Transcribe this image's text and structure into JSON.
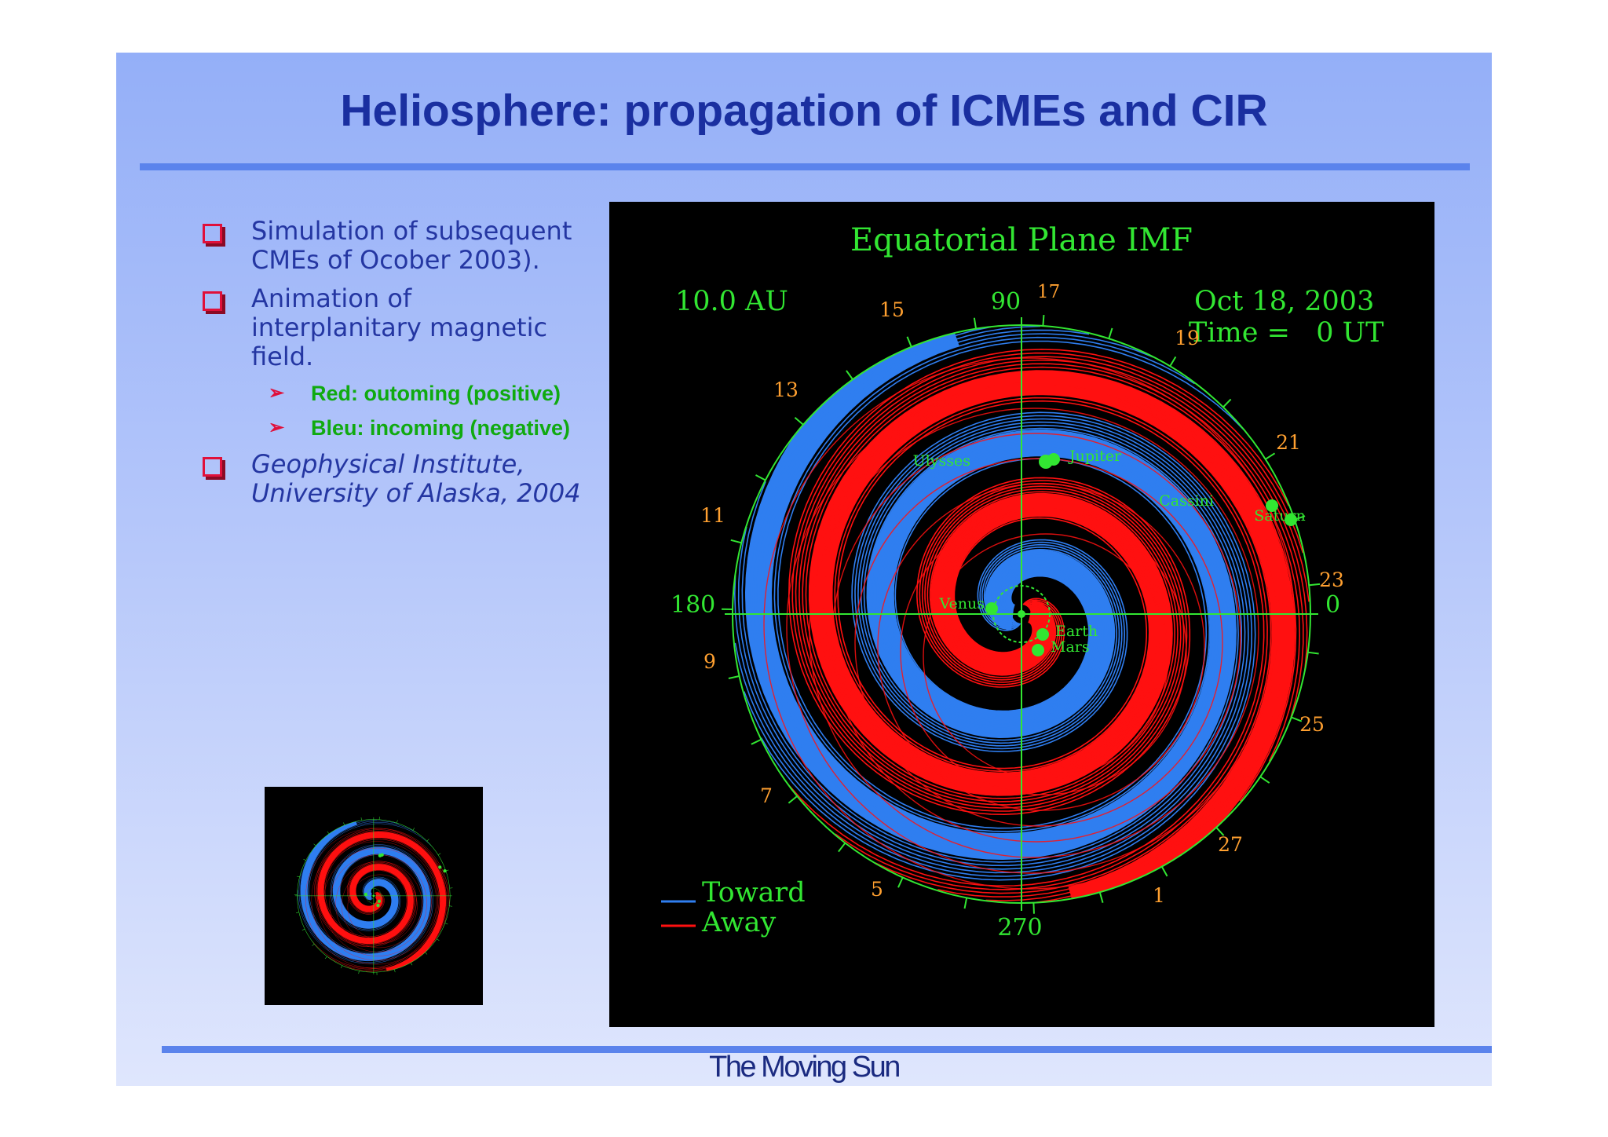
{
  "slide": {
    "title": "Heliosphere: propagation of ICMEs and CIR",
    "footer": "The Moving Sun",
    "bullets": [
      {
        "text": "Simulation of subsequent CMEs of Ocober 2003)."
      },
      {
        "text": "Animation of interplanitary magnetic field."
      },
      {
        "text": "Geophysical Institute, University of Alaska, 2004",
        "italic": true
      }
    ],
    "subbullets": [
      "Red:  outoming (positive)",
      "Bleu: incoming (negative)"
    ]
  },
  "figure": {
    "title": "Equatorial Plane IMF",
    "scale": "10.0 AU",
    "date": "Oct 18, 2003",
    "time": "Time =   0 UT",
    "angles": {
      "a90": "90",
      "a180": "180",
      "a0": "0",
      "a270": "270"
    },
    "ticks": [
      "17",
      "15",
      "13",
      "11",
      "9",
      "7",
      "5",
      "1",
      "27",
      "25",
      "23",
      "21",
      "19"
    ],
    "bodies": [
      "Ulysses",
      "Jupiter",
      "Cassini",
      "Saturn",
      "Venus",
      "Earth",
      "Mars"
    ],
    "legend": {
      "toward": "Toward",
      "away": "Away"
    },
    "colors": {
      "toward": "#2f7ef0",
      "away": "#ff1010",
      "labels": "#32e632",
      "ticks": "#ffa030"
    }
  }
}
